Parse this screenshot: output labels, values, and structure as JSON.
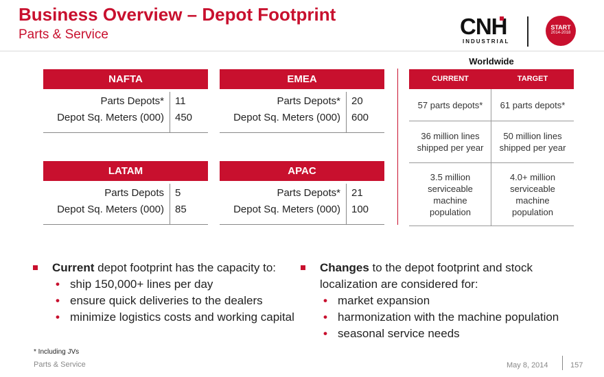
{
  "header": {
    "title": "Business Overview – Depot Footprint",
    "subtitle": "Parts & Service",
    "logo_text": "CNH",
    "logo_sub": "INDUSTRIAL",
    "badge_top": "START",
    "badge_bottom": "2014-2018"
  },
  "regions": [
    {
      "name": "NAFTA",
      "rows": [
        {
          "label": "Parts Depots*",
          "value": "11"
        },
        {
          "label": "Depot Sq. Meters (000)",
          "value": "450"
        }
      ]
    },
    {
      "name": "EMEA",
      "rows": [
        {
          "label": "Parts Depots*",
          "value": "20"
        },
        {
          "label": "Depot Sq. Meters (000)",
          "value": "600"
        }
      ]
    },
    {
      "name": "LATAM",
      "rows": [
        {
          "label": "Parts Depots",
          "value": "5"
        },
        {
          "label": "Depot Sq. Meters (000)",
          "value": "85"
        }
      ]
    },
    {
      "name": "APAC",
      "rows": [
        {
          "label": "Parts Depots*",
          "value": "21"
        },
        {
          "label": "Depot Sq. Meters (000)",
          "value": "100"
        }
      ]
    }
  ],
  "worldwide": {
    "title": "Worldwide",
    "headers": [
      "CURRENT",
      "TARGET"
    ],
    "rows": [
      [
        "57 parts depots*",
        "61 parts depots*"
      ],
      [
        "36 million lines shipped per year",
        "50 million lines shipped per year"
      ],
      [
        "3.5 million serviceable machine population",
        "4.0+ million serviceable machine population"
      ]
    ]
  },
  "bullets_left": {
    "lead_bold": "Current",
    "lead_rest": " depot footprint has the capacity to:",
    "subs": [
      "ship 150,000+ lines per day",
      "ensure quick deliveries to the dealers",
      "minimize logistics costs and working capital"
    ]
  },
  "bullets_right": {
    "lead_bold": "Changes",
    "lead_rest": " to the depot footprint and stock localization are considered for:",
    "subs": [
      "market expansion",
      "harmonization with the machine population",
      "seasonal service needs"
    ]
  },
  "footnote": "* Including JVs",
  "footer": {
    "left": "Parts & Service",
    "date": "May 8, 2014",
    "page": "157"
  }
}
